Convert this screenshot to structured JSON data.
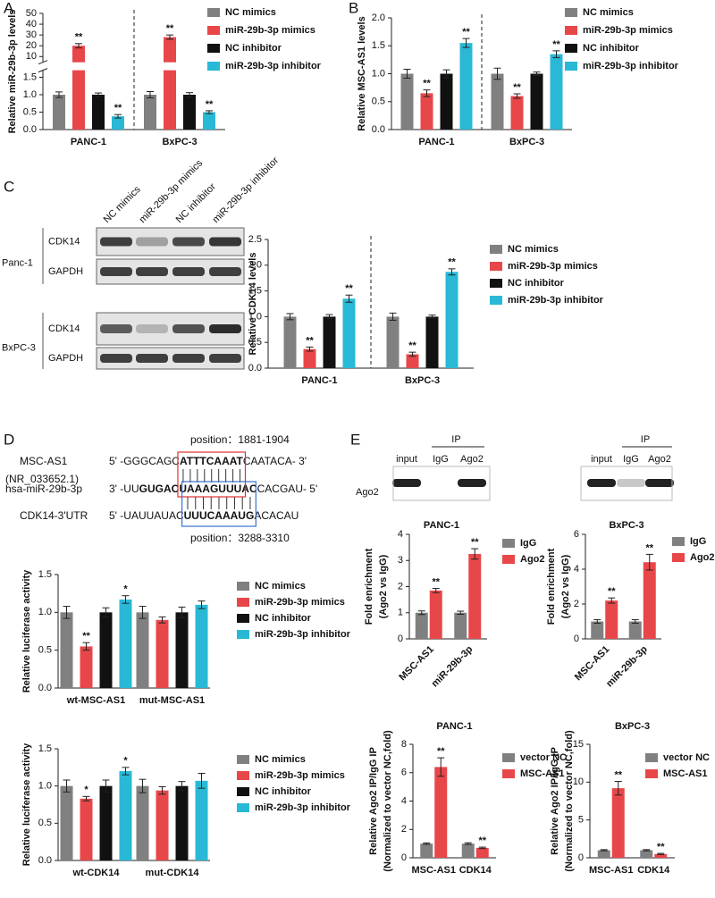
{
  "panel_labels": [
    "A",
    "B",
    "C",
    "D",
    "E"
  ],
  "blot_c": {
    "columns": [
      "NC mimics",
      "miR-29b-3p mimics",
      "NC inhibitor",
      "miR-29b-3p inhibitor"
    ],
    "groups": [
      {
        "name": "Panc-1",
        "rows": [
          "CDK14",
          "GAPDH"
        ]
      },
      {
        "name": "BxPC-3",
        "rows": [
          "CDK14",
          "GAPDH"
        ]
      }
    ]
  },
  "sequence": {
    "top_position": "position：1881-1904",
    "bottom_position": "position：3288-3310",
    "rows": [
      {
        "name": "MSC-AS1",
        "accession": "(NR_033652.1)",
        "segments": [
          {
            "text": "5' -GGGCAGC",
            "bold": false
          },
          {
            "text": "ATTTCAAAT",
            "bold": true
          },
          {
            "text": "CAATACA- 3'",
            "bold": false
          }
        ]
      },
      {
        "name": "hsa-miR-29b-3p",
        "segments": [
          {
            "text": "3' -UU",
            "bold": false
          },
          {
            "text": "GUGAC",
            "bold": true
          },
          {
            "text": "UAAAGUUUAC",
            "bold": true
          },
          {
            "text": "CACGAU- 5'",
            "bold": false
          }
        ]
      },
      {
        "name": "CDK14-3'UTR",
        "segments": [
          {
            "text": "5' -UAUUAUAC",
            "bold": false
          },
          {
            "text": "UUUCAAAUG",
            "bold": true
          },
          {
            "text": "ACACAU",
            "bold": false
          }
        ]
      }
    ]
  },
  "blot_e": [
    {
      "title": "PANC-1",
      "ip": "IP",
      "lanes": [
        "input",
        "IgG",
        "Ago2"
      ],
      "row": "Ago2"
    },
    {
      "title": "BxPC-3",
      "ip": "IP",
      "lanes": [
        "input",
        "IgG",
        "Ago2"
      ]
    }
  ],
  "chart_data": [
    {
      "type": "bar",
      "ylabel": "Relative miR-29b-3p levels",
      "categories": [
        "PANC-1",
        "BxPC-3"
      ],
      "series": [
        {
          "name": "NC mimics",
          "color": "#808080",
          "values": [
            1.0,
            1.0
          ],
          "errors": [
            0.08,
            0.09
          ]
        },
        {
          "name": "miR-29b-3p mimics",
          "color": "#e8474a",
          "values": [
            20,
            28
          ],
          "errors": [
            2,
            2
          ],
          "significance": [
            "**",
            "**"
          ]
        },
        {
          "name": "NC inhibitor",
          "color": "#111111",
          "values": [
            1.0,
            1.0
          ],
          "errors": [
            0.05,
            0.06
          ]
        },
        {
          "name": "miR-29b-3p inhibitor",
          "color": "#29b9d6",
          "values": [
            0.38,
            0.5
          ],
          "errors": [
            0.05,
            0.04
          ],
          "significance": [
            "**",
            "**"
          ]
        }
      ],
      "ylim": [
        0,
        50
      ],
      "ybreak": [
        1.6,
        8
      ],
      "yticks": [
        {
          "value": 0,
          "label": "0.0"
        },
        0.5,
        {
          "value": 1,
          "label": "1.0"
        },
        1.5,
        10,
        20,
        30,
        40,
        50
      ],
      "legend": "right"
    },
    {
      "type": "bar",
      "ylabel": "Relative MSC-AS1 levels",
      "categories": [
        "PANC-1",
        "BxPC-3"
      ],
      "series": [
        {
          "name": "NC mimics",
          "color": "#808080",
          "values": [
            1.0,
            1.0
          ],
          "errors": [
            0.08,
            0.1
          ]
        },
        {
          "name": "miR-29b-3p mimics",
          "color": "#e8474a",
          "values": [
            0.65,
            0.6
          ],
          "errors": [
            0.06,
            0.04
          ],
          "significance": [
            "**",
            "**"
          ]
        },
        {
          "name": "NC inhibitor",
          "color": "#111111",
          "values": [
            1.0,
            1.0
          ],
          "errors": [
            0.07,
            0.03
          ]
        },
        {
          "name": "miR-29b-3p inhibitor",
          "color": "#29b9d6",
          "values": [
            1.55,
            1.35
          ],
          "errors": [
            0.08,
            0.06
          ],
          "significance": [
            "**",
            "**"
          ]
        }
      ],
      "ylim": [
        0,
        2
      ],
      "yticks": [
        {
          "value": 0,
          "label": "0.0"
        },
        0.5,
        {
          "value": 1,
          "label": "1.0"
        },
        1.5,
        {
          "value": 2,
          "label": "2.0"
        }
      ],
      "legend": "right"
    },
    {
      "type": "bar",
      "ylabel": "Relative CDK14 levels",
      "categories": [
        "PANC-1",
        "BxPC-3"
      ],
      "series": [
        {
          "name": "NC mimics",
          "color": "#808080",
          "values": [
            1.0,
            1.0
          ],
          "errors": [
            0.06,
            0.07
          ]
        },
        {
          "name": "miR-29b-3p mimics",
          "color": "#e8474a",
          "values": [
            0.37,
            0.27
          ],
          "errors": [
            0.04,
            0.04
          ],
          "significance": [
            "**",
            "**"
          ]
        },
        {
          "name": "NC inhibitor",
          "color": "#111111",
          "values": [
            1.0,
            1.0
          ],
          "errors": [
            0.04,
            0.03
          ]
        },
        {
          "name": "miR-29b-3p inhibitor",
          "color": "#29b9d6",
          "values": [
            1.35,
            1.87
          ],
          "errors": [
            0.07,
            0.06
          ],
          "significance": [
            "**",
            "**"
          ]
        }
      ],
      "ylim": [
        0,
        2.5
      ],
      "yticks": [
        {
          "value": 0,
          "label": "0.0"
        },
        0.5,
        {
          "value": 1,
          "label": "1.0"
        },
        1.5,
        {
          "value": 2,
          "label": "2.0"
        },
        2.5
      ],
      "legend": "right"
    },
    {
      "type": "bar",
      "ylabel": "Relative luciferase activity",
      "categories": [
        "wt-MSC-AS1",
        "mut-MSC-AS1"
      ],
      "series": [
        {
          "name": "NC mimics",
          "color": "#808080",
          "values": [
            1.0,
            1.0
          ],
          "errors": [
            0.08,
            0.08
          ]
        },
        {
          "name": "miR-29b-3p mimics",
          "color": "#e8474a",
          "values": [
            0.55,
            0.9
          ],
          "errors": [
            0.05,
            0.04
          ],
          "significance": [
            "**",
            null
          ]
        },
        {
          "name": "NC inhibitor",
          "color": "#111111",
          "values": [
            1.0,
            1.0
          ],
          "errors": [
            0.06,
            0.07
          ]
        },
        {
          "name": "miR-29b-3p inhibitor",
          "color": "#29b9d6",
          "values": [
            1.17,
            1.1
          ],
          "errors": [
            0.05,
            0.05
          ],
          "significance": [
            "*",
            null
          ]
        }
      ],
      "ylim": [
        0,
        1.5
      ],
      "yticks": [
        {
          "value": 0,
          "label": "0.0"
        },
        0.5,
        {
          "value": 1,
          "label": "1.0"
        },
        1.5
      ],
      "legend": "right"
    },
    {
      "type": "bar",
      "ylabel": "Relative luciferase activity",
      "categories": [
        "wt-CDK14",
        "mut-CDK14"
      ],
      "series": [
        {
          "name": "NC mimics",
          "color": "#808080",
          "values": [
            1.0,
            1.0
          ],
          "errors": [
            0.08,
            0.09
          ]
        },
        {
          "name": "miR-29b-3p mimics",
          "color": "#e8474a",
          "values": [
            0.83,
            0.94
          ],
          "errors": [
            0.03,
            0.05
          ],
          "significance": [
            "*",
            null
          ]
        },
        {
          "name": "NC inhibitor",
          "color": "#111111",
          "values": [
            1.0,
            1.0
          ],
          "errors": [
            0.08,
            0.06
          ]
        },
        {
          "name": "miR-29b-3p inhibitor",
          "color": "#29b9d6",
          "values": [
            1.2,
            1.07
          ],
          "errors": [
            0.05,
            0.1
          ],
          "significance": [
            "*",
            null
          ]
        }
      ],
      "ylim": [
        0,
        1.5
      ],
      "yticks": [
        {
          "value": 0,
          "label": "0.0"
        },
        0.5,
        {
          "value": 1,
          "label": "1.0"
        },
        1.5
      ],
      "legend": "right"
    },
    {
      "type": "bar",
      "ylabel": [
        "Fold enrichment",
        "(Ago2 vs IgG)"
      ],
      "categories": [
        "MSC-AS1",
        "miR-29b-3p"
      ],
      "series": [
        {
          "name": "IgG",
          "color": "#808080",
          "values": [
            1.0,
            1.0
          ],
          "errors": [
            0.07,
            0.06
          ]
        },
        {
          "name": "Ago2",
          "color": "#e8474a",
          "values": [
            1.85,
            3.25
          ],
          "errors": [
            0.08,
            0.2
          ],
          "significance": [
            "**",
            "**"
          ]
        }
      ],
      "ylim": [
        0,
        4
      ],
      "yticks": [
        0,
        1,
        2,
        3,
        4
      ],
      "legend": "right"
    },
    {
      "type": "bar",
      "ylabel": [
        "Fold enrichment",
        "(Ago2 vs IgG)"
      ],
      "categories": [
        "MSC-AS1",
        "miR-29b-3p"
      ],
      "series": [
        {
          "name": "IgG",
          "color": "#808080",
          "values": [
            1.0,
            1.0
          ],
          "errors": [
            0.1,
            0.1
          ]
        },
        {
          "name": "Ago2",
          "color": "#e8474a",
          "values": [
            2.2,
            4.4
          ],
          "errors": [
            0.15,
            0.45
          ],
          "significance": [
            "**",
            "**"
          ]
        }
      ],
      "ylim": [
        0,
        6
      ],
      "yticks": [
        0,
        2,
        4,
        6
      ],
      "legend": "right"
    },
    {
      "type": "bar",
      "title": "PANC-1",
      "ylabel": [
        "Relative Ago2 IP/IgG IP",
        "(Normalized to vector NC,fold)"
      ],
      "categories": [
        "MSC-AS1",
        "CDK14"
      ],
      "series": [
        {
          "name": "vector NC",
          "color": "#808080",
          "values": [
            1.0,
            1.0
          ],
          "errors": [
            0.05,
            0.06
          ]
        },
        {
          "name": "MSC-AS1",
          "color": "#e8474a",
          "values": [
            6.4,
            0.7
          ],
          "errors": [
            0.65,
            0.05
          ],
          "significance": [
            "**",
            "**"
          ]
        }
      ],
      "ylim": [
        0,
        8
      ],
      "yticks": [
        0,
        2,
        4,
        6,
        8
      ],
      "legend": "right"
    },
    {
      "type": "bar",
      "title": "BxPC-3",
      "ylabel": [
        "Relative Ago2 IP/IgG IP",
        "(Normalized to vector NC,fold)"
      ],
      "categories": [
        "MSC-AS1",
        "CDK14"
      ],
      "series": [
        {
          "name": "vector NC",
          "color": "#808080",
          "values": [
            1.0,
            1.0
          ],
          "errors": [
            0.08,
            0.08
          ]
        },
        {
          "name": "MSC-AS1",
          "color": "#e8474a",
          "values": [
            9.2,
            0.5
          ],
          "errors": [
            0.9,
            0.08
          ],
          "significance": [
            "**",
            "**"
          ]
        }
      ],
      "ylim": [
        0,
        15
      ],
      "yticks": [
        0,
        5,
        10,
        15
      ],
      "legend": "right"
    }
  ]
}
